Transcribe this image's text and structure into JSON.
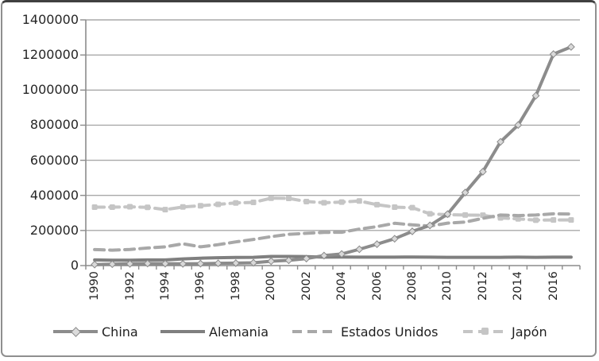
{
  "chart": {
    "background": "#ffffff",
    "frame_border_color": "#8f8f8f",
    "frame_top_color": "#404040",
    "gridline_color": "#a9a9a9",
    "axis_color": "#8c8c8c",
    "label_color": "#262626"
  },
  "chart_data": {
    "type": "line",
    "title": "",
    "xlabel": "",
    "ylabel": "",
    "grid": "horizontal-only",
    "legend_position": "bottom",
    "ylim": [
      0,
      1400000
    ],
    "y_ticks": [
      0,
      200000,
      400000,
      600000,
      800000,
      1000000,
      1200000,
      1400000
    ],
    "y_tick_labels": [
      "0",
      "200000",
      "400000",
      "600000",
      "800000",
      "1000000",
      "1200000",
      "1400000"
    ],
    "x": [
      1990,
      1991,
      1992,
      1993,
      1994,
      1995,
      1996,
      1997,
      1998,
      1999,
      2000,
      2001,
      2002,
      2003,
      2004,
      2005,
      2006,
      2007,
      2008,
      2009,
      2010,
      2011,
      2012,
      2013,
      2014,
      2015,
      2016,
      2017
    ],
    "x_tick_labels": [
      "1990",
      "1992",
      "1994",
      "1996",
      "1998",
      "2000",
      "2002",
      "2004",
      "2006",
      "2008",
      "2010",
      "2012",
      "2014",
      "2016"
    ],
    "series": [
      {
        "id": "china",
        "name": "China",
        "color": "#8c8c8c",
        "line_style": "solid",
        "marker": "diamond",
        "values": [
          6000,
          8000,
          10000,
          12000,
          11000,
          10000,
          11000,
          13000,
          14000,
          16000,
          25000,
          30000,
          40000,
          57000,
          66000,
          93000,
          122000,
          153000,
          195000,
          229000,
          293000,
          416000,
          535000,
          705000,
          801000,
          968000,
          1205000,
          1246000
        ]
      },
      {
        "id": "alemania",
        "name": "Alemania",
        "color": "#7f7f7f",
        "line_style": "solid",
        "marker": "none",
        "values": [
          32000,
          31000,
          31000,
          32000,
          32000,
          38000,
          42000,
          45000,
          46000,
          47000,
          52000,
          52000,
          51000,
          48000,
          49000,
          48000,
          48000,
          48000,
          49000,
          48000,
          47000,
          47000,
          47000,
          47000,
          48000,
          47000,
          48000,
          48000
        ]
      },
      {
        "id": "estados-unidos",
        "name": "Estados Unidos",
        "color": "#a8a8a8",
        "line_style": "dashed",
        "marker": "none",
        "values": [
          91000,
          88000,
          92000,
          100000,
          107000,
          124000,
          107000,
          119000,
          135000,
          149000,
          165000,
          178000,
          184000,
          189000,
          190000,
          208000,
          222000,
          241000,
          232000,
          225000,
          242000,
          248000,
          269000,
          288000,
          285000,
          288000,
          295000,
          294000
        ]
      },
      {
        "id": "japon",
        "name": "Japón",
        "color": "#c5c5c5",
        "line_style": "dashed",
        "marker": "square",
        "values": [
          333000,
          333000,
          335000,
          332000,
          319000,
          334000,
          341000,
          349000,
          357000,
          360000,
          384000,
          383000,
          365000,
          358000,
          362000,
          368000,
          347000,
          333000,
          330000,
          295000,
          290000,
          288000,
          287000,
          272000,
          266000,
          259000,
          260000,
          260000
        ]
      }
    ]
  }
}
